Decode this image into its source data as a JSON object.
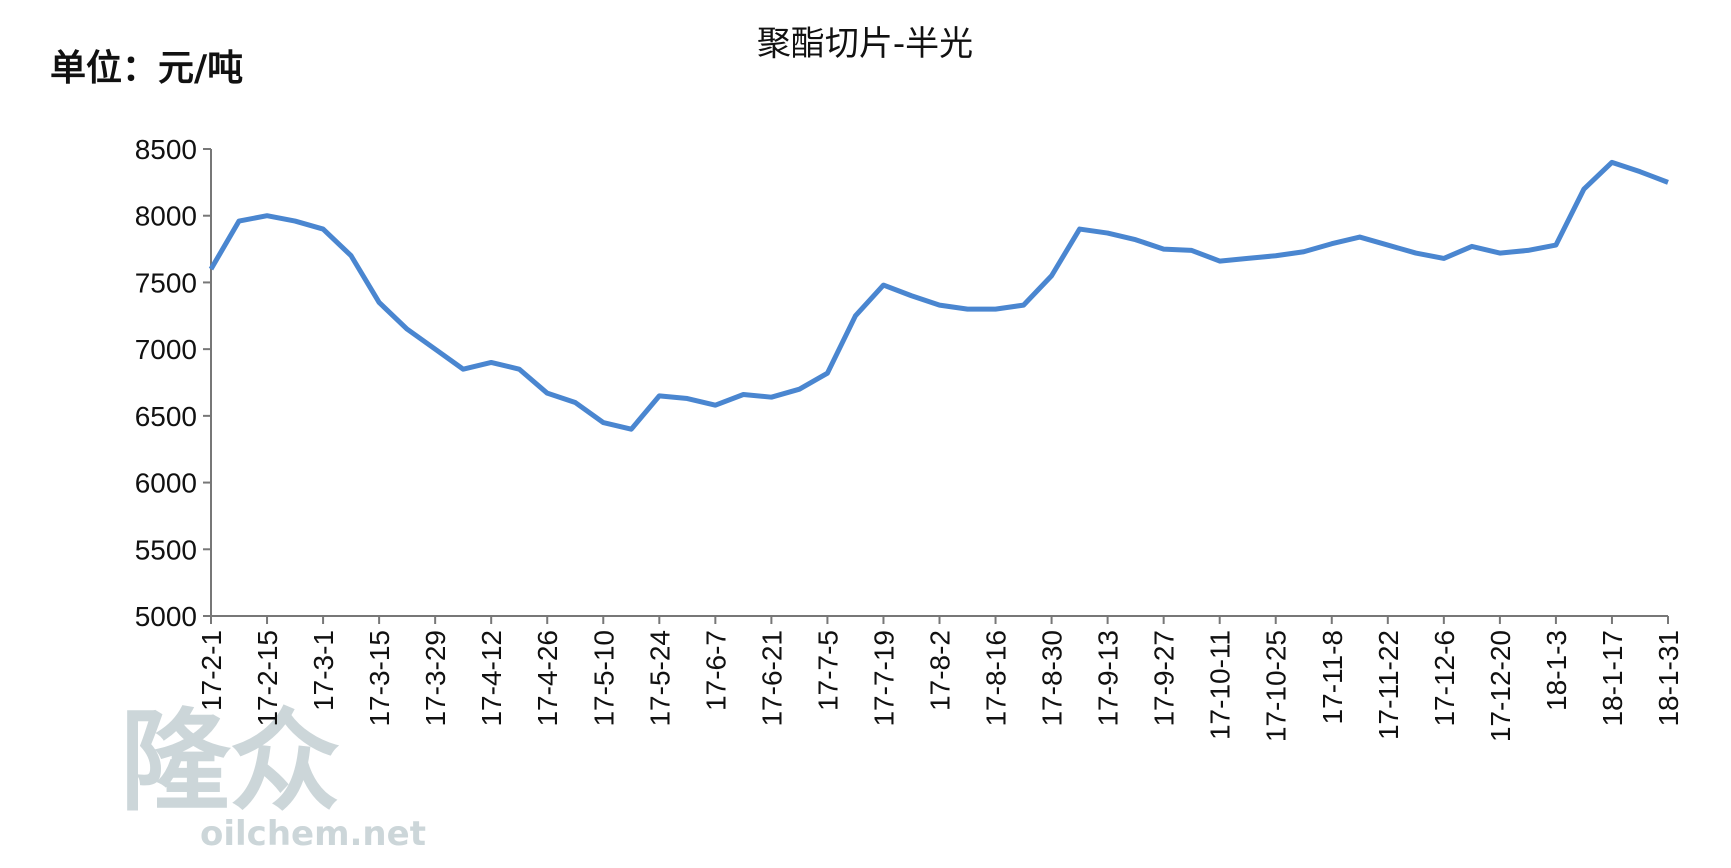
{
  "chart_data": {
    "type": "line",
    "title": "聚酯切片-半光",
    "unit_label": "单位：元/吨",
    "watermark": [
      "隆众",
      "oilchem.net"
    ],
    "categories": [
      "17-2-1",
      null,
      "17-2-15",
      null,
      "17-3-1",
      null,
      "17-3-15",
      null,
      "17-3-29",
      null,
      "17-4-12",
      null,
      "17-4-26",
      null,
      "17-5-10",
      null,
      "17-5-24",
      null,
      "17-6-7",
      null,
      "17-6-21",
      null,
      "17-7-5",
      null,
      "17-7-19",
      null,
      "17-8-2",
      null,
      "17-8-16",
      null,
      "17-8-30",
      null,
      "17-9-13",
      null,
      "17-9-27",
      null,
      "17-10-11",
      null,
      "17-10-25",
      null,
      "17-11-8",
      null,
      "17-11-22",
      null,
      "17-12-6",
      null,
      "17-12-20",
      null,
      "18-1-3",
      null,
      "18-1-17",
      null,
      "18-1-31"
    ],
    "series": [
      {
        "color": "#4a86d0",
        "values": [
          7600,
          7960,
          8000,
          7960,
          7900,
          7700,
          7350,
          7150,
          7000,
          6850,
          6900,
          6850,
          6670,
          6600,
          6450,
          6400,
          6650,
          6630,
          6580,
          6660,
          6640,
          6700,
          6820,
          7250,
          7480,
          7400,
          7330,
          7300,
          7300,
          7330,
          7550,
          7900,
          7870,
          7820,
          7750,
          7740,
          7660,
          7680,
          7700,
          7730,
          7790,
          7840,
          7780,
          7720,
          7680,
          7770,
          7720,
          7740,
          7780,
          8200,
          8400,
          8330,
          8250
        ]
      }
    ],
    "ylim": [
      5000,
      8500
    ],
    "yticks": [
      5000,
      5500,
      6000,
      6500,
      7000,
      7500,
      8000,
      8500
    ],
    "grid": false
  }
}
